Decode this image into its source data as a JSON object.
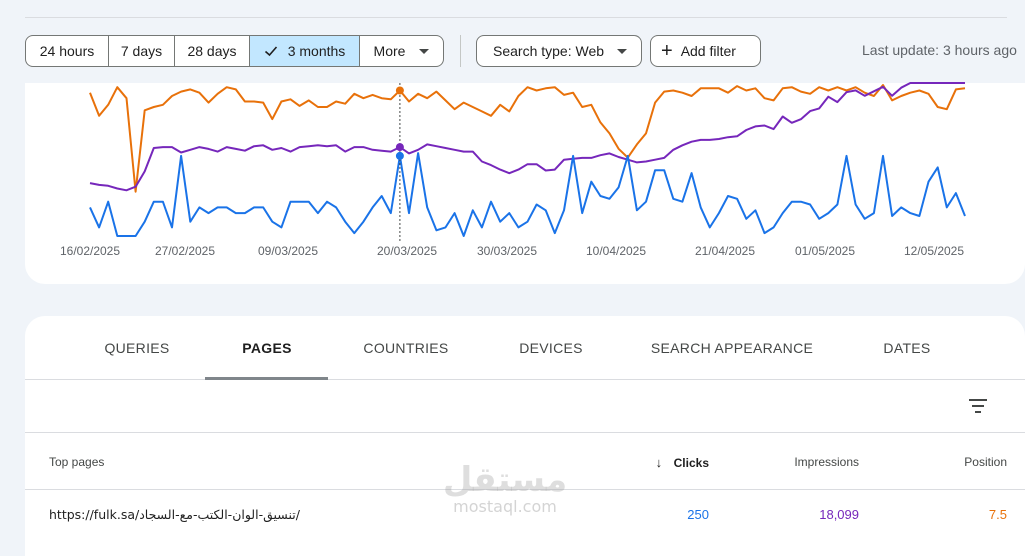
{
  "filter_bar": {
    "date_ranges": [
      {
        "label": "24 hours",
        "active": false
      },
      {
        "label": "7 days",
        "active": false
      },
      {
        "label": "28 days",
        "active": false
      },
      {
        "label": "3 months",
        "active": true
      },
      {
        "label": "More",
        "active": false
      }
    ],
    "search_type_label": "Search type: Web",
    "add_filter_label": "Add filter",
    "last_update": "Last update: 3 hours ago"
  },
  "chart_data": {
    "type": "line",
    "x_tick_labels": [
      "16/02/2025",
      "27/02/2025",
      "09/03/2025",
      "20/03/2025",
      "30/03/2025",
      "10/04/2025",
      "21/04/2025",
      "01/05/2025",
      "12/05/2025"
    ],
    "hover_index": 34,
    "colors": {
      "clicks": "#e8710a",
      "impressions": "#7627bb",
      "ctr": "#1a73e8"
    },
    "series": [
      {
        "key": "clicks",
        "values": [
          93,
          72,
          82,
          98,
          88,
          3,
          77,
          80,
          82,
          90,
          94,
          96,
          93,
          84,
          92,
          98,
          96,
          85,
          85,
          84,
          69,
          85,
          87,
          81,
          86,
          80,
          80,
          85,
          83,
          92,
          88,
          91,
          88,
          87,
          95,
          85,
          92,
          88,
          94,
          86,
          78,
          84,
          80,
          76,
          72,
          82,
          76,
          90,
          98,
          95,
          97,
          98,
          91,
          93,
          80,
          82,
          66,
          56,
          42,
          34,
          46,
          56,
          84,
          94,
          95,
          93,
          90,
          97,
          97,
          97,
          93,
          99,
          95,
          97,
          88,
          86,
          97,
          98,
          94,
          92,
          98,
          95,
          98,
          95,
          98,
          93,
          90,
          100,
          86,
          90,
          93,
          95,
          92,
          80,
          78,
          96,
          97
        ]
      },
      {
        "key": "impressions",
        "values": [
          31,
          29,
          28,
          25,
          23,
          27,
          44,
          70,
          71,
          71,
          65,
          68,
          71,
          69,
          66,
          71,
          69,
          67,
          72,
          73,
          68,
          70,
          66,
          71,
          72,
          73,
          72,
          73,
          66,
          71,
          71,
          68,
          67,
          66,
          71,
          64,
          68,
          74,
          72,
          70,
          68,
          66,
          66,
          55,
          51,
          46,
          42,
          46,
          52,
          52,
          45,
          46,
          57,
          58,
          59,
          59,
          62,
          64,
          60,
          57,
          54,
          55,
          57,
          59,
          68,
          73,
          77,
          79,
          79,
          80,
          82,
          83,
          90,
          94,
          95,
          91,
          105,
          98,
          102,
          111,
          114,
          127,
          121,
          132,
          134,
          128,
          133,
          138,
          128,
          137,
          156,
          156,
          167,
          157,
          148,
          145,
          148
        ]
      },
      {
        "key": "ctr",
        "values": [
          4.0,
          2.6,
          4.4,
          2.0,
          2.0,
          2.0,
          3.0,
          4.4,
          4.4,
          2.6,
          7.6,
          3.0,
          4.0,
          3.6,
          4.0,
          4.0,
          3.6,
          3.6,
          4.0,
          4.0,
          3.0,
          2.6,
          4.4,
          4.4,
          4.4,
          3.6,
          4.4,
          4.0,
          3.0,
          2.2,
          3.0,
          4.0,
          4.8,
          3.6,
          7.6,
          3.6,
          7.8,
          4.0,
          2.4,
          2.6,
          3.6,
          2.0,
          3.8,
          2.6,
          4.4,
          3.0,
          3.6,
          2.6,
          3.0,
          4.2,
          3.8,
          2.2,
          3.8,
          7.6,
          3.6,
          5.8,
          4.8,
          4.6,
          5.4,
          7.6,
          3.8,
          4.4,
          6.6,
          6.6,
          4.6,
          4.4,
          6.4,
          4.0,
          2.6,
          3.6,
          4.8,
          4.6,
          3.2,
          3.8,
          2.2,
          2.6,
          3.6,
          4.4,
          4.4,
          4.2,
          3.2,
          3.6,
          4.2,
          7.6,
          4.2,
          3.2,
          3.6,
          7.6,
          3.4,
          4.0,
          3.6,
          3.4,
          5.8,
          6.8,
          4.0,
          5.0,
          3.4
        ]
      }
    ]
  },
  "table": {
    "tabs": [
      "QUERIES",
      "PAGES",
      "COUNTRIES",
      "DEVICES",
      "SEARCH APPEARANCE",
      "DATES"
    ],
    "active_tab": "PAGES",
    "columns": {
      "page": "Top pages",
      "clicks": "Clicks",
      "impressions": "Impressions",
      "position": "Position"
    },
    "sorted_column": "clicks",
    "rows": [
      {
        "page": "https://fulk.sa/تنسيق-الوان-الكتب-مع-السجاد/",
        "clicks": "250",
        "impressions": "18,099",
        "position": "7.5"
      }
    ]
  },
  "watermark": {
    "logo": "مستقل",
    "text": "mostaql.com"
  }
}
